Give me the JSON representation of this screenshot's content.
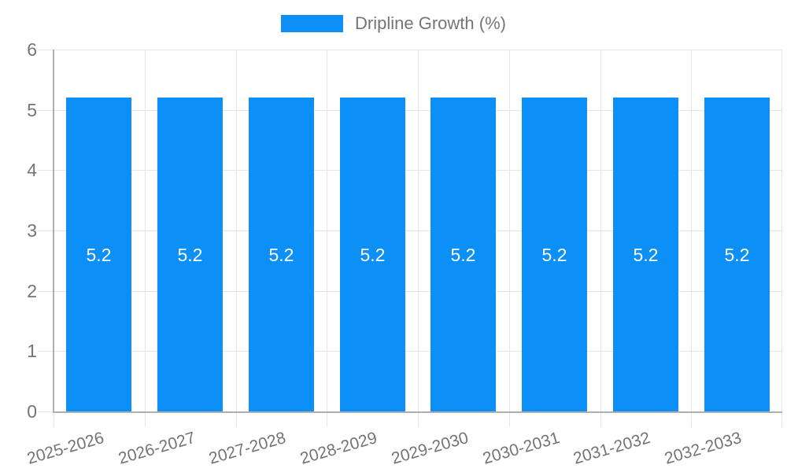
{
  "chart_data": {
    "type": "bar",
    "title": "",
    "categories": [
      "2025-2026",
      "2026-2027",
      "2027-2028",
      "2028-2029",
      "2029-2030",
      "2030-2031",
      "2031-2032",
      "2032-2033"
    ],
    "series": [
      {
        "name": "Dripline Growth (%)",
        "values": [
          5.2,
          5.2,
          5.2,
          5.2,
          5.2,
          5.2,
          5.2,
          5.2
        ]
      }
    ],
    "data_labels": [
      "5.2",
      "5.2",
      "5.2",
      "5.2",
      "5.2",
      "5.2",
      "5.2",
      "5.2"
    ],
    "xlabel": "",
    "ylabel": "",
    "ylim": [
      0,
      6
    ],
    "yticks": [
      0,
      1,
      2,
      3,
      4,
      5,
      6
    ],
    "grid": true,
    "legend_position": "top",
    "x_tick_rotation_deg": -16,
    "colors": {
      "bar": "#0D8FF8",
      "grid": "#E5E5E5",
      "axis": "#AFAFAF",
      "tick_text": "#757575",
      "bar_label_text": "#FFFFFF",
      "background": "#FFFFFF"
    }
  }
}
